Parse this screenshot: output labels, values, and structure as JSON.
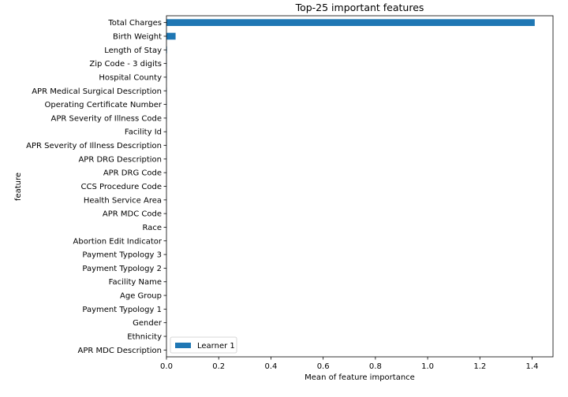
{
  "chart_data": {
    "type": "bar",
    "orientation": "horizontal",
    "title": "Top-25 important features",
    "xlabel": "Mean of feature importance",
    "ylabel": "feature",
    "xlim": [
      0,
      1.48
    ],
    "xticks": [
      0.0,
      0.2,
      0.4,
      0.6,
      0.8,
      1.0,
      1.2,
      1.4
    ],
    "xtick_labels": [
      "0.0",
      "0.2",
      "0.4",
      "0.6",
      "0.8",
      "1.0",
      "1.2",
      "1.4"
    ],
    "grid": false,
    "legend_position": "bottom-left",
    "categories": [
      "Total Charges",
      "Birth Weight",
      "Length of Stay",
      "Zip Code - 3 digits",
      "Hospital County",
      "APR Medical Surgical Description",
      "Operating Certificate Number",
      "APR Severity of Illness Code",
      "Facility Id",
      "APR Severity of Illness Description",
      "APR DRG Description",
      "APR DRG Code",
      "CCS Procedure Code",
      "Health Service Area",
      "APR MDC Code",
      "Race",
      "Abortion Edit Indicator",
      "Payment Typology 3",
      "Payment Typology 2",
      "Facility Name",
      "Age Group",
      "Payment Typology 1",
      "Gender",
      "Ethnicity",
      "APR MDC Description"
    ],
    "series": [
      {
        "name": "Learner 1",
        "color": "#1f77b4",
        "values": [
          1.41,
          0.035,
          0.002,
          0.001,
          0.001,
          0.001,
          0.0008,
          0.0007,
          0.0006,
          0.0005,
          0.0005,
          0.0004,
          0.0004,
          0.0003,
          0.0003,
          0.0003,
          0.0002,
          0.0002,
          0.0002,
          0.0002,
          0.0001,
          0.0001,
          0.0001,
          0.0001,
          0.0001
        ]
      }
    ]
  }
}
